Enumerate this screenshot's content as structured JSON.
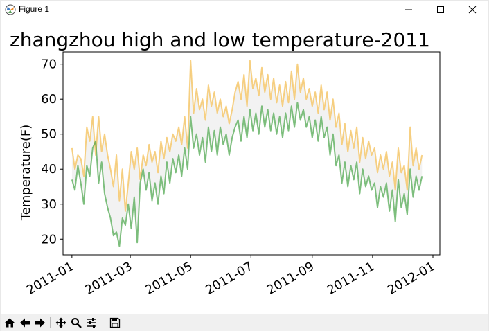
{
  "window": {
    "title": "Figure 1",
    "icon": "matplotlib-icon",
    "controls": [
      "minimize-icon",
      "maximize-icon",
      "close-icon"
    ]
  },
  "toolbar": {
    "icons": [
      "home-icon",
      "back-icon",
      "forward-icon",
      "pan-icon",
      "zoom-icon",
      "configure-subplots-icon",
      "save-icon"
    ]
  },
  "colors": {
    "high": "#f5b841",
    "low": "#3a9e3a",
    "fill": "#d9d9d9"
  },
  "chart_data": {
    "type": "line",
    "title": "zhangzhou high and low temperature-2011",
    "xlabel": "",
    "ylabel": "Temperature(F)",
    "xlim": [
      "2010-12-23",
      "2012-01-08"
    ],
    "ylim": [
      15.5,
      73.5
    ],
    "grid": false,
    "legend": "none",
    "x_ticks": [
      "2011-01",
      "2011-03",
      "2011-05",
      "2011-07",
      "2011-09",
      "2011-11",
      "2012-01"
    ],
    "y_ticks": [
      20,
      30,
      40,
      50,
      60,
      70
    ],
    "fill_between": true,
    "x": [
      "2011-01-01",
      "2011-01-04",
      "2011-01-07",
      "2011-01-10",
      "2011-01-13",
      "2011-01-16",
      "2011-01-19",
      "2011-01-22",
      "2011-01-25",
      "2011-01-28",
      "2011-01-31",
      "2011-02-03",
      "2011-02-06",
      "2011-02-09",
      "2011-02-12",
      "2011-02-15",
      "2011-02-18",
      "2011-02-21",
      "2011-02-24",
      "2011-02-27",
      "2011-03-02",
      "2011-03-05",
      "2011-03-08",
      "2011-03-11",
      "2011-03-14",
      "2011-03-17",
      "2011-03-20",
      "2011-03-23",
      "2011-03-26",
      "2011-03-29",
      "2011-04-01",
      "2011-04-04",
      "2011-04-07",
      "2011-04-10",
      "2011-04-13",
      "2011-04-16",
      "2011-04-19",
      "2011-04-22",
      "2011-04-25",
      "2011-04-28",
      "2011-05-01",
      "2011-05-04",
      "2011-05-07",
      "2011-05-10",
      "2011-05-13",
      "2011-05-16",
      "2011-05-19",
      "2011-05-22",
      "2011-05-25",
      "2011-05-28",
      "2011-05-31",
      "2011-06-03",
      "2011-06-06",
      "2011-06-09",
      "2011-06-12",
      "2011-06-15",
      "2011-06-18",
      "2011-06-21",
      "2011-06-24",
      "2011-06-27",
      "2011-06-30",
      "2011-07-03",
      "2011-07-06",
      "2011-07-09",
      "2011-07-12",
      "2011-07-15",
      "2011-07-18",
      "2011-07-21",
      "2011-07-24",
      "2011-07-27",
      "2011-07-30",
      "2011-08-02",
      "2011-08-05",
      "2011-08-08",
      "2011-08-11",
      "2011-08-14",
      "2011-08-17",
      "2011-08-20",
      "2011-08-23",
      "2011-08-26",
      "2011-08-29",
      "2011-09-01",
      "2011-09-04",
      "2011-09-07",
      "2011-09-10",
      "2011-09-13",
      "2011-09-16",
      "2011-09-19",
      "2011-09-22",
      "2011-09-25",
      "2011-09-28",
      "2011-10-01",
      "2011-10-04",
      "2011-10-07",
      "2011-10-10",
      "2011-10-13",
      "2011-10-16",
      "2011-10-19",
      "2011-10-22",
      "2011-10-25",
      "2011-10-28",
      "2011-10-31",
      "2011-11-03",
      "2011-11-06",
      "2011-11-09",
      "2011-11-12",
      "2011-11-15",
      "2011-11-18",
      "2011-11-21",
      "2011-11-24",
      "2011-11-27",
      "2011-11-30",
      "2011-12-03",
      "2011-12-06",
      "2011-12-09",
      "2011-12-12",
      "2011-12-15",
      "2011-12-18",
      "2011-12-21"
    ],
    "series": [
      {
        "key": "high",
        "values": [
          46,
          40,
          44,
          43,
          38,
          52,
          48,
          55,
          44,
          55,
          45,
          50,
          44,
          40,
          35,
          44,
          31,
          40,
          28,
          36,
          45,
          40,
          46,
          37,
          44,
          41,
          47,
          42,
          45,
          39,
          48,
          43,
          49,
          45,
          50,
          48,
          52,
          47,
          55,
          46,
          71,
          56,
          63,
          57,
          60,
          54,
          64,
          58,
          62,
          56,
          60,
          55,
          58,
          53,
          57,
          62,
          65,
          60,
          67,
          58,
          71,
          63,
          66,
          61,
          69,
          62,
          67,
          60,
          66,
          59,
          64,
          58,
          65,
          59,
          68,
          60,
          70,
          62,
          66,
          60,
          63,
          58,
          62,
          56,
          64,
          57,
          62,
          54,
          60,
          52,
          56,
          47,
          53,
          45,
          51,
          46,
          52,
          42,
          49,
          43,
          48,
          44,
          46,
          39,
          44,
          40,
          45,
          38,
          42,
          34,
          46,
          39,
          41,
          34,
          52,
          41,
          46,
          40,
          44
        ]
      },
      {
        "key": "low",
        "values": [
          37,
          34,
          41,
          36,
          30,
          41,
          38,
          46,
          48,
          36,
          42,
          33,
          29,
          26,
          21,
          22,
          18,
          26,
          24,
          30,
          23,
          32,
          19,
          36,
          40,
          34,
          39,
          31,
          36,
          30,
          38,
          33,
          42,
          36,
          43,
          39,
          44,
          38,
          46,
          40,
          55,
          46,
          50,
          44,
          49,
          42,
          52,
          45,
          51,
          44,
          52,
          47,
          50,
          44,
          49,
          52,
          54,
          48,
          55,
          49,
          57,
          51,
          56,
          50,
          58,
          52,
          57,
          51,
          56,
          50,
          55,
          49,
          56,
          51,
          58,
          52,
          59,
          54,
          57,
          52,
          55,
          49,
          54,
          48,
          55,
          49,
          52,
          44,
          50,
          41,
          44,
          36,
          42,
          35,
          41,
          37,
          42,
          33,
          40,
          35,
          38,
          34,
          36,
          29,
          35,
          32,
          36,
          28,
          34,
          25,
          37,
          29,
          33,
          27,
          40,
          32,
          38,
          34,
          38
        ]
      }
    ]
  }
}
